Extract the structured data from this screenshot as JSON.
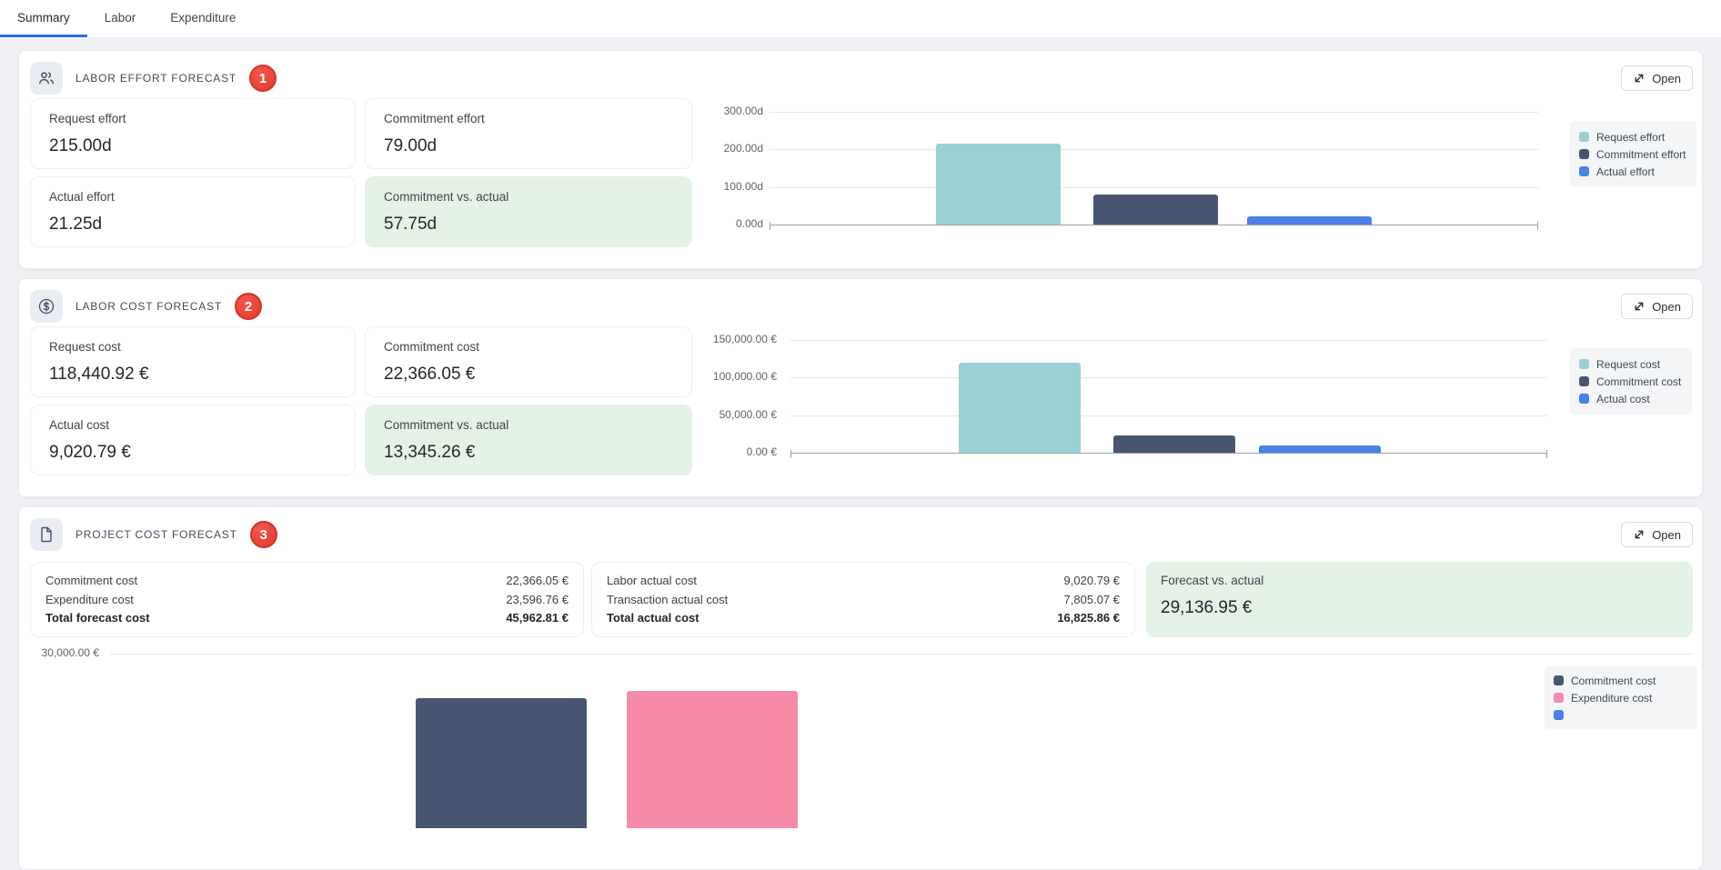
{
  "tabs": [
    {
      "label": "Summary",
      "active": true
    },
    {
      "label": "Labor",
      "active": false
    },
    {
      "label": "Expenditure",
      "active": false
    }
  ],
  "open_label": "Open",
  "colors": {
    "accent_blue": "#2e6ae4",
    "badge_red": "#e23a31",
    "highlight_green": "#e4f2e6",
    "teal": "#98d1d3",
    "navy": "#485570",
    "blue": "#4a80e8",
    "pink": "#f58ba6"
  },
  "sections": {
    "labor_effort": {
      "title": "LABOR EFFORT FORECAST",
      "badge": "1",
      "metrics": [
        {
          "label": "Request effort",
          "value": "215.00d"
        },
        {
          "label": "Commitment effort",
          "value": "79.00d"
        },
        {
          "label": "Actual effort",
          "value": "21.25d"
        },
        {
          "label": "Commitment vs. actual",
          "value": "57.75d",
          "highlight": true
        }
      ]
    },
    "labor_cost": {
      "title": "LABOR COST FORECAST",
      "badge": "2",
      "metrics": [
        {
          "label": "Request cost",
          "value": "118,440.92 €"
        },
        {
          "label": "Commitment cost",
          "value": "22,366.05 €"
        },
        {
          "label": "Actual cost",
          "value": "9,020.79 €"
        },
        {
          "label": "Commitment vs. actual",
          "value": "13,345.26 €",
          "highlight": true
        }
      ]
    },
    "project_cost": {
      "title": "PROJECT COST FORECAST",
      "badge": "3",
      "forecast_rows": [
        {
          "label": "Commitment cost",
          "value": "22,366.05 €"
        },
        {
          "label": "Expenditure cost",
          "value": "23,596.76 €"
        },
        {
          "label": "Total forecast cost",
          "value": "45,962.81 €",
          "bold": true
        }
      ],
      "actual_rows": [
        {
          "label": "Labor actual cost",
          "value": "9,020.79 €"
        },
        {
          "label": "Transaction actual cost",
          "value": "7,805.07 €"
        },
        {
          "label": "Total actual cost",
          "value": "16,825.86 €",
          "bold": true
        }
      ],
      "variance": {
        "label": "Forecast vs. actual",
        "value": "29,136.95 €"
      }
    }
  },
  "chart_data": [
    {
      "id": "labor-effort-forecast",
      "type": "bar",
      "categories": [
        "Request effort",
        "Commitment effort",
        "Actual effort"
      ],
      "values": [
        215.0,
        79.0,
        21.25
      ],
      "unit": "d",
      "ylim": [
        0,
        300
      ],
      "yticks": [
        "300.00d",
        "200.00d",
        "100.00d",
        "0.00d"
      ],
      "colors": [
        "#98d1d3",
        "#485570",
        "#4a80e8"
      ],
      "legend": [
        {
          "label": "Request effort",
          "color": "#98d1d3"
        },
        {
          "label": "Commitment effort",
          "color": "#485570"
        },
        {
          "label": "Actual effort",
          "color": "#4a80e8"
        }
      ],
      "legend_position": "right",
      "grid": true
    },
    {
      "id": "labor-cost-forecast",
      "type": "bar",
      "categories": [
        "Request cost",
        "Commitment cost",
        "Actual cost"
      ],
      "values": [
        118440.92,
        22366.05,
        9020.79
      ],
      "unit": "€",
      "ylim": [
        0,
        150000
      ],
      "yticks": [
        "150,000.00 €",
        "100,000.00 €",
        "50,000.00 €",
        "0.00 €"
      ],
      "colors": [
        "#98d1d3",
        "#485570",
        "#4a80e8"
      ],
      "legend": [
        {
          "label": "Request cost",
          "color": "#98d1d3"
        },
        {
          "label": "Commitment cost",
          "color": "#485570"
        },
        {
          "label": "Actual cost",
          "color": "#4a80e8"
        }
      ],
      "legend_position": "right",
      "grid": true
    },
    {
      "id": "project-cost-forecast",
      "type": "bar",
      "categories": [
        "Commitment cost",
        "Expenditure cost"
      ],
      "values": [
        22366.05,
        23596.76
      ],
      "unit": "€",
      "yticks": [
        "30,000.00 €"
      ],
      "colors": [
        "#485570",
        "#f58ba6"
      ],
      "legend": [
        {
          "label": "Commitment cost",
          "color": "#485570"
        },
        {
          "label": "Expenditure cost",
          "color": "#f58ba6"
        },
        {
          "label": "",
          "color": "#4a80e8"
        }
      ],
      "legend_position": "bottom-right",
      "grid": true
    }
  ]
}
